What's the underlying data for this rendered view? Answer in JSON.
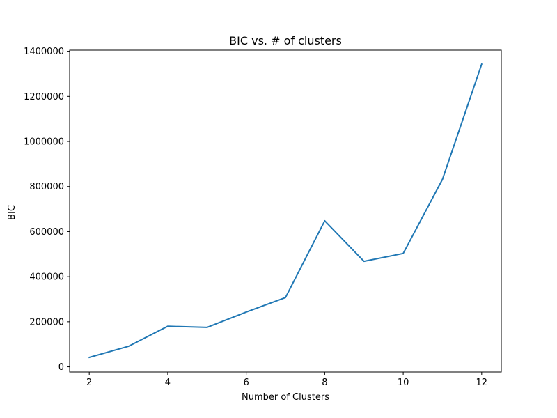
{
  "chart_data": {
    "type": "line",
    "title": "BIC vs. # of clusters",
    "xlabel": "Number of Clusters",
    "ylabel": "BIC",
    "x": [
      2,
      3,
      4,
      5,
      6,
      7,
      8,
      9,
      10,
      11,
      12
    ],
    "series": [
      {
        "values": [
          42000,
          91000,
          180000,
          175000,
          243000,
          307000,
          648000,
          468000,
          503000,
          832000,
          1343000
        ],
        "color": "#1f77b4"
      }
    ],
    "xlim": [
      1.5,
      12.5
    ],
    "ylim": [
      -23000,
      1405000
    ],
    "xticks": [
      2,
      4,
      6,
      8,
      10,
      12
    ],
    "xtick_labels": [
      "2",
      "4",
      "6",
      "8",
      "10",
      "12"
    ],
    "yticks": [
      0,
      200000,
      400000,
      600000,
      800000,
      1000000,
      1200000,
      1400000
    ],
    "ytick_labels": [
      "0",
      "200000",
      "400000",
      "600000",
      "800000",
      "1000000",
      "1200000",
      "1400000"
    ],
    "grid": false,
    "legend": "none"
  }
}
